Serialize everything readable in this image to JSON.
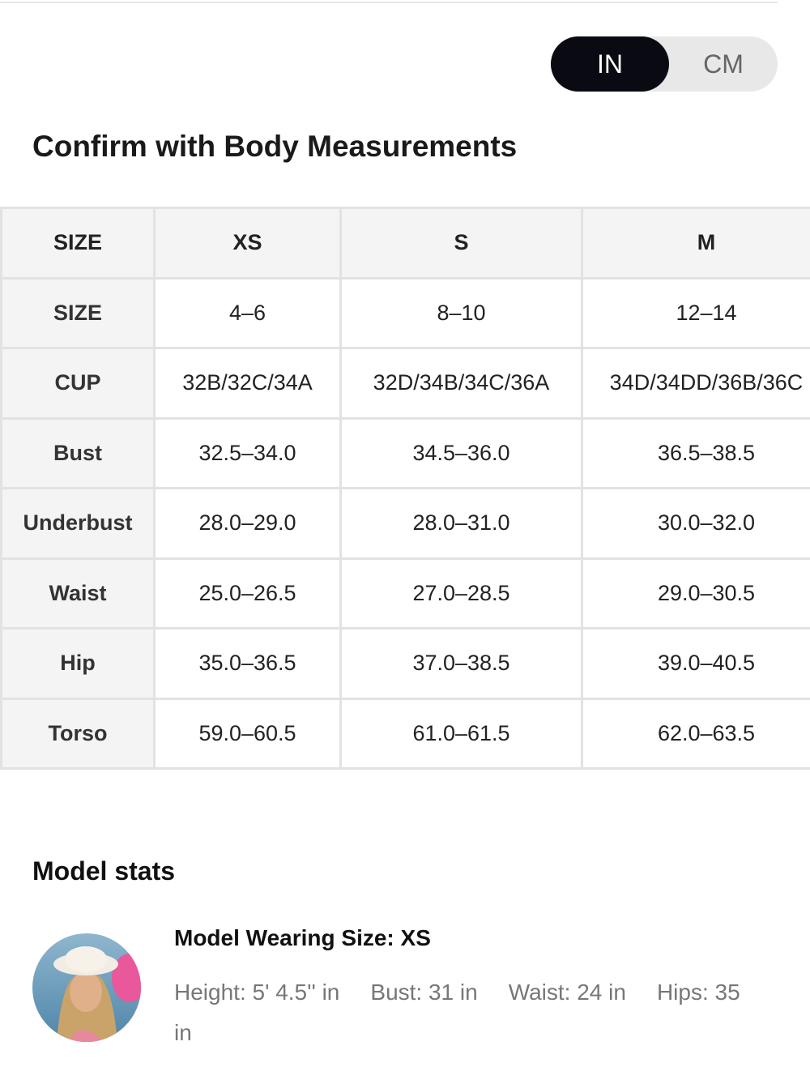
{
  "unit_toggle": {
    "options": [
      "IN",
      "CM"
    ],
    "selected": 0
  },
  "title": "Confirm with Body Measurements",
  "table": {
    "header": [
      "SIZE",
      "XS",
      "S",
      "M"
    ],
    "rows": [
      [
        "SIZE",
        "4–6",
        "8–10",
        "12–14"
      ],
      [
        "CUP",
        "32B/32C/34A",
        "32D/34B/34C/36A",
        "34D/34DD/36B/36C"
      ],
      [
        "Bust",
        "32.5–34.0",
        "34.5–36.0",
        "36.5–38.5"
      ],
      [
        "Underbust",
        "28.0–29.0",
        "28.0–31.0",
        "30.0–32.0"
      ],
      [
        "Waist",
        "25.0–26.5",
        "27.0–28.5",
        "29.0–30.5"
      ],
      [
        "Hip",
        "35.0–36.5",
        "37.0–38.5",
        "39.0–40.5"
      ],
      [
        "Torso",
        "59.0–60.5",
        "61.0–61.5",
        "62.0–63.5"
      ]
    ]
  },
  "model_stats": {
    "heading": "Model stats",
    "wearing": "Model Wearing Size: XS",
    "stats": [
      "Height: 5' 4.5'' in",
      "Bust: 31 in",
      "Waist: 24 in",
      "Hips: 35 in"
    ]
  }
}
